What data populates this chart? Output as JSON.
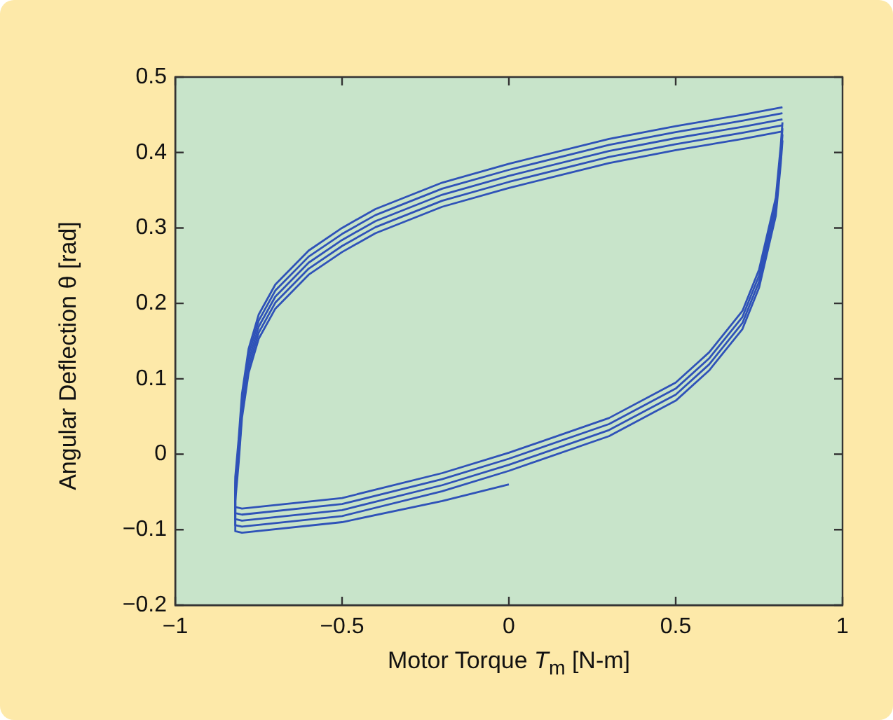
{
  "chart_data": {
    "type": "line",
    "xlabel": "Motor Torque T$_{m}$ [N-m]",
    "ylabel": "Angular Deflection θ [rad]",
    "xlim": [
      -1,
      1
    ],
    "xticks": [
      {
        "value": -1,
        "label": "−1"
      },
      {
        "value": -0.5,
        "label": "−0.5"
      },
      0,
      0.5,
      1
    ],
    "ylim": [
      -0.2,
      0.5
    ],
    "yticks": [
      {
        "value": -0.2,
        "label": "−0.2"
      },
      {
        "value": -0.1,
        "label": "−0.1"
      },
      0,
      0.1,
      0.2,
      0.3,
      0.4,
      0.5
    ],
    "grid": false,
    "legend": false,
    "marker": "none",
    "line_style": "solid",
    "series": [
      {
        "color": "#2f52b8",
        "x": [
          0.82,
          0.7,
          0.5,
          0.3,
          0,
          -0.2,
          -0.4,
          -0.5,
          -0.6,
          -0.7,
          -0.75,
          -0.78,
          -0.8,
          -0.81,
          -0.82,
          -0.82,
          -0.8,
          -0.5,
          -0.2,
          0,
          0.3,
          0.5,
          0.6,
          0.7,
          0.75,
          0.8,
          0.815,
          0.82
        ],
        "values": [
          0.46,
          0.45,
          0.435,
          0.418,
          0.385,
          0.36,
          0.325,
          0.3,
          0.27,
          0.225,
          0.185,
          0.14,
          0.08,
          0.02,
          -0.03,
          -0.07,
          -0.072,
          -0.058,
          -0.025,
          0.002,
          0.048,
          0.095,
          0.135,
          0.19,
          0.245,
          0.34,
          0.41,
          0.44
        ]
      },
      {
        "color": "#2f52b8",
        "x": [
          0.82,
          0.7,
          0.5,
          0.3,
          0,
          -0.2,
          -0.4,
          -0.5,
          -0.6,
          -0.7,
          -0.75,
          -0.78,
          -0.8,
          -0.81,
          -0.82,
          -0.82,
          -0.8,
          -0.5,
          -0.2,
          0,
          0.3,
          0.5,
          0.6,
          0.7,
          0.75,
          0.8,
          0.815,
          0.82
        ],
        "values": [
          0.452,
          0.442,
          0.427,
          0.41,
          0.377,
          0.352,
          0.317,
          0.292,
          0.262,
          0.217,
          0.177,
          0.132,
          0.072,
          0.012,
          -0.038,
          -0.078,
          -0.08,
          -0.066,
          -0.033,
          -0.006,
          0.04,
          0.087,
          0.127,
          0.182,
          0.237,
          0.332,
          0.402,
          0.432
        ]
      },
      {
        "color": "#2f52b8",
        "x": [
          0.82,
          0.7,
          0.5,
          0.3,
          0,
          -0.2,
          -0.4,
          -0.5,
          -0.6,
          -0.7,
          -0.75,
          -0.78,
          -0.8,
          -0.81,
          -0.82,
          -0.82,
          -0.8,
          -0.5,
          -0.2,
          0,
          0.3,
          0.5,
          0.6,
          0.7,
          0.75,
          0.8,
          0.815,
          0.82
        ],
        "values": [
          0.444,
          0.434,
          0.419,
          0.402,
          0.369,
          0.344,
          0.309,
          0.284,
          0.254,
          0.209,
          0.169,
          0.124,
          0.064,
          0.004,
          -0.046,
          -0.086,
          -0.088,
          -0.074,
          -0.041,
          -0.014,
          0.032,
          0.079,
          0.119,
          0.174,
          0.229,
          0.324,
          0.394,
          0.424
        ]
      },
      {
        "color": "#2f52b8",
        "x": [
          0.82,
          0.7,
          0.5,
          0.3,
          0,
          -0.2,
          -0.4,
          -0.5,
          -0.6,
          -0.7,
          -0.75,
          -0.78,
          -0.8,
          -0.81,
          -0.82,
          -0.82,
          -0.8,
          -0.5,
          -0.2,
          0,
          0.3,
          0.5,
          0.6,
          0.7,
          0.75,
          0.8,
          0.815,
          0.82
        ],
        "values": [
          0.436,
          0.426,
          0.411,
          0.394,
          0.361,
          0.336,
          0.301,
          0.276,
          0.246,
          0.201,
          0.161,
          0.116,
          0.056,
          -0.004,
          -0.054,
          -0.094,
          -0.096,
          -0.082,
          -0.049,
          -0.022,
          0.024,
          0.071,
          0.111,
          0.166,
          0.221,
          0.316,
          0.386,
          0.416
        ]
      },
      {
        "color": "#2f52b8",
        "x": [
          0.82,
          0.7,
          0.5,
          0.3,
          0,
          -0.2,
          -0.4,
          -0.5,
          -0.6,
          -0.7,
          -0.75,
          -0.78,
          -0.8,
          -0.81,
          -0.82,
          -0.82,
          -0.8,
          -0.5,
          -0.2,
          0
        ],
        "values": [
          0.428,
          0.418,
          0.403,
          0.386,
          0.353,
          0.328,
          0.293,
          0.268,
          0.238,
          0.193,
          0.153,
          0.108,
          0.048,
          -0.012,
          -0.062,
          -0.102,
          -0.104,
          -0.09,
          -0.062,
          -0.04
        ]
      }
    ]
  }
}
